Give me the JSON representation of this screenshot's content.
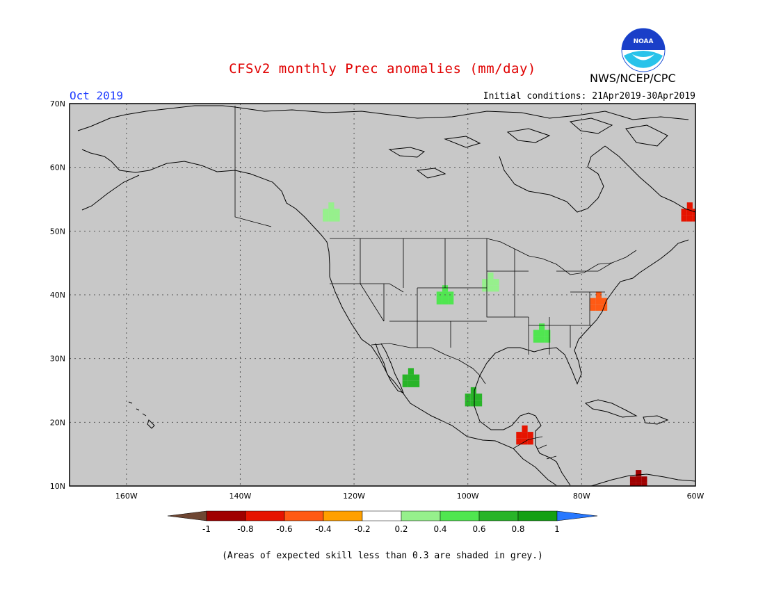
{
  "header": {
    "title": "CFSv2 monthly Prec anomalies (mm/day)",
    "month": "Oct 2019",
    "initial_conditions": "Initial conditions: 21Apr2019-30Apr2019",
    "agency": "NWS/NCEP/CPC",
    "logo_text": "NOAA"
  },
  "map": {
    "lat_labels": [
      "70N",
      "60N",
      "50N",
      "40N",
      "30N",
      "20N",
      "10N"
    ],
    "lon_labels": [
      "160W",
      "140W",
      "120W",
      "100W",
      "80W",
      "60W"
    ],
    "lat_range": [
      10,
      70
    ],
    "lon_range": [
      -170,
      -60
    ],
    "background_color": "#c8c8c8",
    "grid": "dotted",
    "anomaly_patches": [
      {
        "region": "Pacific Northwest",
        "lon": -124,
        "lat": 53,
        "category": "0.2-0.4"
      },
      {
        "region": "Central Plains",
        "lon": -104,
        "lat": 40,
        "category": "0.4-0.6"
      },
      {
        "region": "Nebraska / Iowa",
        "lon": -96,
        "lat": 42,
        "category": "0.2-0.4"
      },
      {
        "region": "Southeast US",
        "lon": -87,
        "lat": 34,
        "category": "0.4-0.6"
      },
      {
        "region": "Sonora / Sinaloa",
        "lon": -110,
        "lat": 27,
        "category": "0.6-0.8"
      },
      {
        "region": "Eastern Mexico",
        "lon": -99,
        "lat": 24,
        "category": "0.6-0.8"
      },
      {
        "region": "Mid-Atlantic",
        "lon": -77,
        "lat": 39,
        "category": "-0.6 to -0.4"
      },
      {
        "region": "Yucatan / Central America",
        "lon": -90,
        "lat": 18,
        "category": "-0.8 to -0.6"
      },
      {
        "region": "Newfoundland / Labrador",
        "lon": -61,
        "lat": 53,
        "category": "-0.8 to -0.6"
      },
      {
        "region": "Northern South America",
        "lon": -70,
        "lat": 11,
        "category": "-1 to -0.8"
      }
    ]
  },
  "colorbar": {
    "labels": [
      "-1",
      "-0.8",
      "-0.6",
      "-0.4",
      "-0.2",
      "0.2",
      "0.4",
      "0.6",
      "0.8",
      "1"
    ],
    "colors": {
      "below_min": "#6e4632",
      "c1": "#a00000",
      "c2": "#e61400",
      "c3": "#ff5a14",
      "c4": "#ffa000",
      "c5": "#ffffff",
      "c6": "#96f08c",
      "c7": "#50e650",
      "c8": "#28b428",
      "c9": "#14a014",
      "above_max": "#2878ff"
    }
  },
  "footer": {
    "note": "(Areas of expected skill less than 0.3 are shaded in grey.)"
  }
}
